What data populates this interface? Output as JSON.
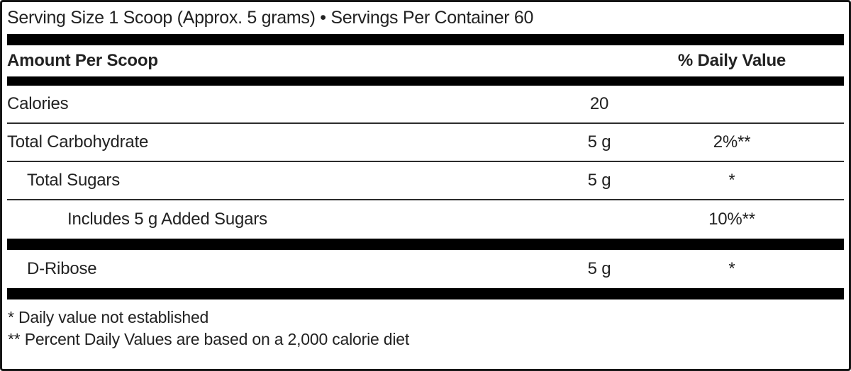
{
  "label": {
    "serving_line": "Serving Size 1 Scoop (Approx. 5 grams) • Servings Per Container 60",
    "columns": {
      "amount_header": "Amount Per Scoop",
      "dv_header": "% Daily Value"
    },
    "rows": [
      {
        "name": "Calories",
        "amount": "20",
        "dv": ""
      },
      {
        "name": "Total Carbohydrate",
        "amount": "5 g",
        "dv": "2%**"
      },
      {
        "name": "Total Sugars",
        "amount": "5 g",
        "dv": "*"
      },
      {
        "name": "Includes 5 g Added Sugars",
        "amount": "",
        "dv": "10%**"
      },
      {
        "name": "D-Ribose",
        "amount": "5 g",
        "dv": "*"
      }
    ],
    "footnotes": [
      "* Daily value not established",
      "** Percent Daily Values are based on a 2,000 calorie diet"
    ],
    "colors": {
      "text": "#222222",
      "bar": "#000000",
      "border": "#161616"
    }
  }
}
